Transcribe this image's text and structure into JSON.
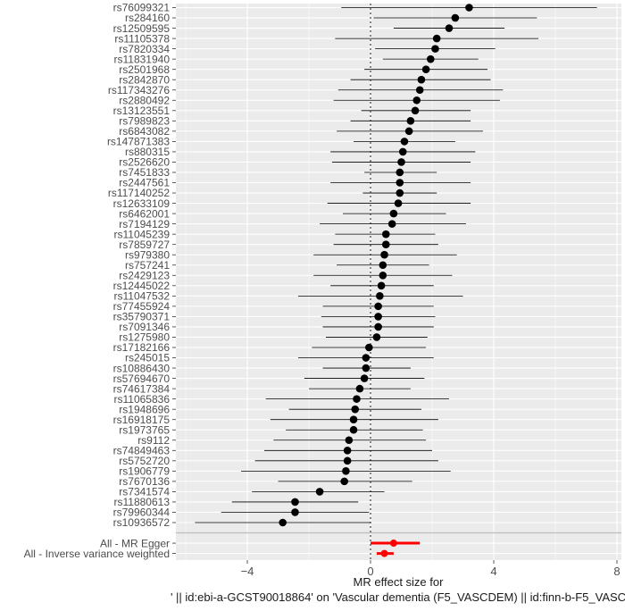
{
  "chart_data": {
    "type": "scatter",
    "subtype": "forest-plot",
    "xlabel": [
      "MR effect size for",
      "' || id:ebi-a-GCST90018864' on 'Vascular dementia (F5_VASCDEM) || id:finn-b-F5_VASC"
    ],
    "ylabel": "",
    "xlim": [
      -6.2,
      8.0
    ],
    "x_ticks": [
      -4,
      0,
      4,
      8
    ],
    "grid": true,
    "reference_line_x": 0,
    "colors": {
      "snp": "#000000",
      "summary": "#ff0000",
      "panel": "#ebebeb",
      "grid": "#ffffff"
    },
    "snps": [
      {
        "label": "rs76099321",
        "b": 3.2,
        "lo": -0.95,
        "hi": 7.35
      },
      {
        "label": "rs284160",
        "b": 2.75,
        "lo": 0.1,
        "hi": 5.4
      },
      {
        "label": "rs12509595",
        "b": 2.55,
        "lo": 0.75,
        "hi": 4.35
      },
      {
        "label": "rs11105378",
        "b": 2.15,
        "lo": -1.15,
        "hi": 5.45
      },
      {
        "label": "rs7820334",
        "b": 2.1,
        "lo": 0.15,
        "hi": 4.05
      },
      {
        "label": "rs11831940",
        "b": 1.95,
        "lo": 0.4,
        "hi": 3.5
      },
      {
        "label": "rs2501968",
        "b": 1.8,
        "lo": -0.2,
        "hi": 3.8
      },
      {
        "label": "rs2842870",
        "b": 1.65,
        "lo": -0.65,
        "hi": 3.9
      },
      {
        "label": "rs117343276",
        "b": 1.6,
        "lo": -1.05,
        "hi": 4.3
      },
      {
        "label": "rs2880492",
        "b": 1.5,
        "lo": -1.2,
        "hi": 4.2
      },
      {
        "label": "rs13123551",
        "b": 1.45,
        "lo": -0.3,
        "hi": 3.25
      },
      {
        "label": "rs7989823",
        "b": 1.3,
        "lo": -0.65,
        "hi": 3.25
      },
      {
        "label": "rs6843082",
        "b": 1.25,
        "lo": -1.1,
        "hi": 3.65
      },
      {
        "label": "rs147871383",
        "b": 1.1,
        "lo": -0.55,
        "hi": 2.75
      },
      {
        "label": "rs880315",
        "b": 1.05,
        "lo": -1.3,
        "hi": 3.4
      },
      {
        "label": "rs2526620",
        "b": 1.0,
        "lo": -1.25,
        "hi": 3.25
      },
      {
        "label": "rs7451833",
        "b": 0.95,
        "lo": -0.2,
        "hi": 2.15
      },
      {
        "label": "rs2447561",
        "b": 0.95,
        "lo": -1.3,
        "hi": 3.25
      },
      {
        "label": "rs117140252",
        "b": 0.95,
        "lo": -0.25,
        "hi": 2.15
      },
      {
        "label": "rs12633109",
        "b": 0.9,
        "lo": -1.4,
        "hi": 3.25
      },
      {
        "label": "rs6462001",
        "b": 0.75,
        "lo": -0.9,
        "hi": 2.45
      },
      {
        "label": "rs7194129",
        "b": 0.7,
        "lo": -1.65,
        "hi": 3.1
      },
      {
        "label": "rs11045239",
        "b": 0.5,
        "lo": -1.15,
        "hi": 2.1
      },
      {
        "label": "rs7859727",
        "b": 0.5,
        "lo": -1.2,
        "hi": 2.2
      },
      {
        "label": "rs979380",
        "b": 0.45,
        "lo": -1.85,
        "hi": 2.8
      },
      {
        "label": "rs757241",
        "b": 0.4,
        "lo": -1.1,
        "hi": 1.9
      },
      {
        "label": "rs2429123",
        "b": 0.4,
        "lo": -1.85,
        "hi": 2.65
      },
      {
        "label": "rs12445022",
        "b": 0.35,
        "lo": -1.3,
        "hi": 2.05
      },
      {
        "label": "rs11047532",
        "b": 0.3,
        "lo": -2.35,
        "hi": 3.0
      },
      {
        "label": "rs77455924",
        "b": 0.25,
        "lo": -1.55,
        "hi": 2.05
      },
      {
        "label": "rs35790371",
        "b": 0.25,
        "lo": -1.6,
        "hi": 2.1
      },
      {
        "label": "rs7091346",
        "b": 0.25,
        "lo": -1.55,
        "hi": 2.05
      },
      {
        "label": "rs1275980",
        "b": 0.2,
        "lo": -1.45,
        "hi": 1.85
      },
      {
        "label": "rs17182166",
        "b": -0.05,
        "lo": -1.9,
        "hi": 1.8
      },
      {
        "label": "rs245015",
        "b": -0.15,
        "lo": -2.35,
        "hi": 2.05
      },
      {
        "label": "rs10886430",
        "b": -0.15,
        "lo": -1.55,
        "hi": 1.3
      },
      {
        "label": "rs57694670",
        "b": -0.2,
        "lo": -2.15,
        "hi": 1.75
      },
      {
        "label": "rs74617384",
        "b": -0.35,
        "lo": -2.0,
        "hi": 1.3
      },
      {
        "label": "rs11065836",
        "b": -0.45,
        "lo": -3.4,
        "hi": 2.55
      },
      {
        "label": "rs1948696",
        "b": -0.5,
        "lo": -2.65,
        "hi": 1.65
      },
      {
        "label": "rs16918175",
        "b": -0.55,
        "lo": -3.25,
        "hi": 2.2
      },
      {
        "label": "rs1973765",
        "b": -0.55,
        "lo": -2.75,
        "hi": 1.7
      },
      {
        "label": "rs9112",
        "b": -0.7,
        "lo": -3.15,
        "hi": 1.8
      },
      {
        "label": "rs74849463",
        "b": -0.75,
        "lo": -3.45,
        "hi": 2.0
      },
      {
        "label": "rs5752720",
        "b": -0.75,
        "lo": -3.75,
        "hi": 2.2
      },
      {
        "label": "rs1906779",
        "b": -0.8,
        "lo": -4.2,
        "hi": 2.6
      },
      {
        "label": "rs7670136",
        "b": -0.85,
        "lo": -3.0,
        "hi": 1.35
      },
      {
        "label": "rs7341574",
        "b": -1.65,
        "lo": -3.85,
        "hi": 0.45
      },
      {
        "label": "rs11880613",
        "b": -2.45,
        "lo": -4.5,
        "hi": -0.4
      },
      {
        "label": "rs79960344",
        "b": -2.45,
        "lo": -4.85,
        "hi": -0.05
      },
      {
        "label": "rs10936572",
        "b": -2.85,
        "lo": -5.7,
        "hi": 0.0
      }
    ],
    "summary": [
      {
        "label": "All - MR Egger",
        "b": 0.75,
        "lo": 0.0,
        "hi": 1.6
      },
      {
        "label": "All - Inverse variance weighted",
        "b": 0.45,
        "lo": 0.2,
        "hi": 0.75
      }
    ]
  }
}
